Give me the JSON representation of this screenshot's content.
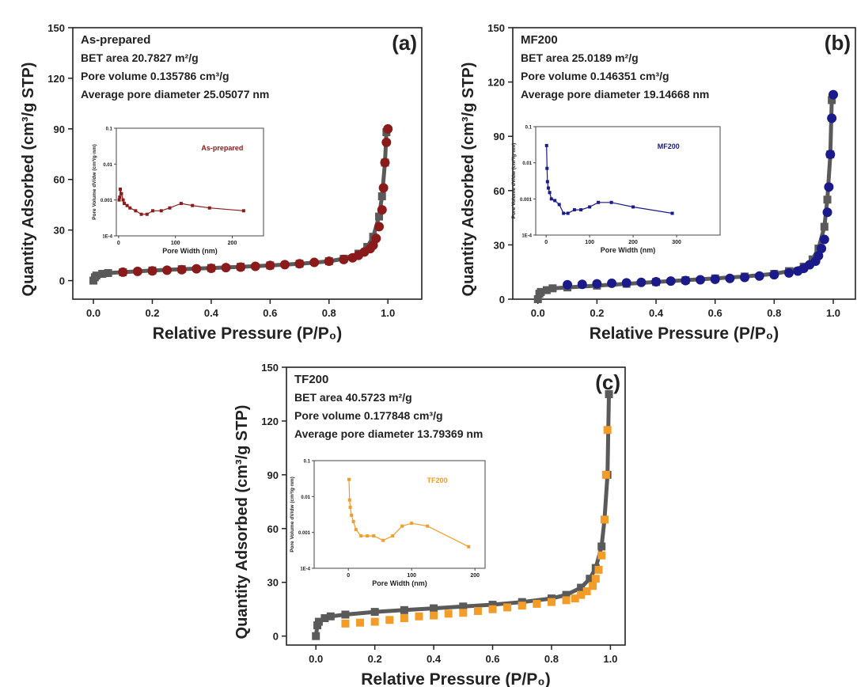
{
  "chart_data": [
    {
      "type": "scatter",
      "panel_label": "(a)",
      "annotations": [
        "As-prepared",
        "BET area 20.7827 m²/g",
        "Pore volume 0.135786 cm³/g",
        "Average pore diameter 25.05077 nm"
      ],
      "xlabel": "Relative Pressure (P/P₀)",
      "ylabel": "Quantity Adsorbed (cm³/g STP)",
      "xlim": [
        -0.07,
        1.115
      ],
      "ylim": [
        -11,
        150
      ],
      "xticks": [
        {
          "value": 0,
          "label": "0.0"
        },
        {
          "value": 0.2,
          "label": "0.2"
        },
        {
          "value": 0.4,
          "label": "0.4"
        },
        {
          "value": 0.6,
          "label": "0.6"
        },
        {
          "value": 0.8,
          "label": "0.8"
        },
        {
          "value": 1,
          "label": "1.0"
        }
      ],
      "yticks": [
        0,
        30,
        60,
        90,
        120,
        150
      ],
      "series": [
        {
          "color": "#5a5a5a",
          "marker": "square",
          "x": [
            0,
            0.005,
            0.01,
            0.03,
            0.05,
            0.1,
            0.2,
            0.3,
            0.4,
            0.5,
            0.6,
            0.7,
            0.8,
            0.85,
            0.9,
            0.93,
            0.95,
            0.97,
            0.98,
            0.99,
            0.995
          ],
          "values": [
            0,
            2,
            3,
            4,
            4.5,
            5,
            6,
            6.8,
            7.5,
            8.2,
            9,
            10,
            11.5,
            13,
            16,
            20,
            26,
            38,
            50,
            70,
            88
          ]
        },
        {
          "color": "#8b1a1a",
          "marker": "circle",
          "x": [
            0.1,
            0.15,
            0.2,
            0.25,
            0.3,
            0.35,
            0.4,
            0.45,
            0.5,
            0.55,
            0.6,
            0.65,
            0.7,
            0.75,
            0.8,
            0.85,
            0.88,
            0.9,
            0.92,
            0.94,
            0.95,
            0.96,
            0.97,
            0.98,
            0.985,
            0.99,
            0.995,
            1.0
          ],
          "values": [
            5,
            5.5,
            5.8,
            6.2,
            6.5,
            7,
            7.3,
            7.7,
            8,
            8.5,
            9,
            9.5,
            10,
            10.8,
            11.5,
            12.5,
            13.5,
            15,
            17,
            19,
            21,
            25,
            32,
            42,
            55,
            70,
            82,
            90
          ]
        }
      ]
    },
    {
      "type": "line",
      "log_y": true,
      "xlabel": "Pore Width (nm)",
      "ylabel": "Pore Volume dV/dw (cm³/g·nm)",
      "xlim": [
        -4,
        255
      ],
      "ylim": [
        0.0001,
        0.1
      ],
      "xticks": [
        0,
        100,
        200
      ],
      "yticks": [
        {
          "value": 0.0001,
          "label": "1E-4"
        },
        0.001,
        0.01,
        0.1
      ],
      "series": [
        {
          "name": "As-prepared",
          "color": "#8b1a1a",
          "x": [
            1,
            2,
            3,
            5,
            8,
            10,
            15,
            20,
            30,
            40,
            50,
            60,
            75,
            90,
            110,
            130,
            160,
            220
          ],
          "values": [
            0.001,
            0.0012,
            0.002,
            0.0015,
            0.001,
            0.0008,
            0.0007,
            0.0006,
            0.0005,
            0.0004,
            0.0004,
            0.0005,
            0.0005,
            0.0006,
            0.0008,
            0.0007,
            0.0006,
            0.0005
          ]
        }
      ]
    },
    {
      "type": "scatter",
      "panel_label": "(b)",
      "annotations": [
        "MF200",
        "BET area 25.0189 m²/g",
        "Pore volume 0.146351 cm³/g",
        "Average pore diameter 19.14668 nm"
      ],
      "xlabel": "Relative Pressure (P/P₀)",
      "ylabel": "Quantity Adsorbed (cm³/g STP)",
      "xlim": [
        -0.085,
        1.075
      ],
      "ylim": [
        0,
        150
      ],
      "xticks": [
        {
          "value": 0,
          "label": "0.0"
        },
        {
          "value": 0.2,
          "label": "0.2"
        },
        {
          "value": 0.4,
          "label": "0.4"
        },
        {
          "value": 0.6,
          "label": "0.6"
        },
        {
          "value": 0.8,
          "label": "0.8"
        },
        {
          "value": 1,
          "label": "1.0"
        }
      ],
      "yticks": [
        0,
        30,
        60,
        90,
        120,
        150
      ],
      "series": [
        {
          "color": "#5a5a5a",
          "marker": "square",
          "x": [
            0,
            0.005,
            0.01,
            0.03,
            0.05,
            0.1,
            0.2,
            0.3,
            0.4,
            0.5,
            0.6,
            0.7,
            0.8,
            0.85,
            0.9,
            0.93,
            0.95,
            0.97,
            0.98,
            0.99,
            0.995
          ],
          "values": [
            0,
            3,
            4,
            5,
            6,
            6.5,
            7.5,
            8.5,
            9.5,
            10.5,
            11.5,
            12.5,
            14,
            15.5,
            18,
            22,
            28,
            40,
            55,
            80,
            110
          ]
        },
        {
          "color": "#1a1a8b",
          "marker": "circle",
          "x": [
            0.1,
            0.15,
            0.2,
            0.25,
            0.3,
            0.35,
            0.4,
            0.45,
            0.5,
            0.55,
            0.6,
            0.65,
            0.7,
            0.75,
            0.8,
            0.85,
            0.88,
            0.9,
            0.92,
            0.94,
            0.95,
            0.96,
            0.97,
            0.98,
            0.985,
            0.99,
            0.995,
            1.0
          ],
          "values": [
            8,
            8.2,
            8.5,
            8.8,
            9,
            9.3,
            9.6,
            10,
            10.3,
            10.7,
            11,
            11.5,
            12,
            12.8,
            13.5,
            14.5,
            15.5,
            17,
            19,
            21,
            24,
            28,
            33,
            48,
            62,
            80,
            100,
            113
          ]
        }
      ]
    },
    {
      "type": "line",
      "log_y": true,
      "xlabel": "Pore Width (nm)",
      "ylabel": "Pore Volume dV/dw (cm³/g·nm)",
      "xlim": [
        -24,
        400
      ],
      "ylim": [
        0.0001,
        0.1
      ],
      "xticks": [
        0,
        100,
        200,
        300
      ],
      "yticks": [
        {
          "value": 0.0001,
          "label": "1E-4"
        },
        0.001,
        0.01,
        0.1
      ],
      "series": [
        {
          "name": "MF200",
          "color": "#1a1a8b",
          "x": [
            1,
            2,
            3,
            5,
            8,
            12,
            20,
            30,
            40,
            50,
            65,
            80,
            100,
            120,
            150,
            200,
            290
          ],
          "values": [
            0.03,
            0.007,
            0.003,
            0.002,
            0.0015,
            0.001,
            0.0009,
            0.0007,
            0.0004,
            0.0004,
            0.0005,
            0.0005,
            0.0006,
            0.0008,
            0.0008,
            0.0006,
            0.0004
          ]
        }
      ]
    },
    {
      "type": "scatter",
      "panel_label": "(c)",
      "annotations": [
        "TF200",
        "BET area 40.5723 m²/g",
        "Pore volume 0.177848 cm³/g",
        "Average pore diameter 13.79369 nm"
      ],
      "xlabel": "Relative Pressure (P/P₀)",
      "ylabel": "Quantity Adsorbed (cm³/g STP)",
      "xlim": [
        -0.1,
        1.05
      ],
      "ylim": [
        -5,
        150
      ],
      "xticks": [
        {
          "value": 0,
          "label": "0.0"
        },
        {
          "value": 0.2,
          "label": "0.2"
        },
        {
          "value": 0.4,
          "label": "0.4"
        },
        {
          "value": 0.6,
          "label": "0.6"
        },
        {
          "value": 0.8,
          "label": "0.8"
        },
        {
          "value": 1,
          "label": "1.0"
        }
      ],
      "yticks": [
        0,
        30,
        60,
        90,
        120,
        150
      ],
      "series": [
        {
          "color": "#5a5a5a",
          "marker": "square",
          "x": [
            0,
            0.005,
            0.01,
            0.03,
            0.05,
            0.1,
            0.2,
            0.3,
            0.4,
            0.5,
            0.6,
            0.7,
            0.8,
            0.85,
            0.9,
            0.93,
            0.95,
            0.97,
            0.98,
            0.99,
            0.995
          ],
          "values": [
            0,
            6,
            8,
            10,
            11,
            12,
            13.5,
            14.5,
            15.5,
            16.5,
            17.5,
            19,
            21,
            23,
            27,
            32,
            38,
            50,
            65,
            90,
            135
          ]
        },
        {
          "color": "#f39c28",
          "marker": "square",
          "x": [
            0.1,
            0.15,
            0.2,
            0.25,
            0.3,
            0.35,
            0.4,
            0.45,
            0.5,
            0.55,
            0.6,
            0.65,
            0.7,
            0.75,
            0.8,
            0.85,
            0.88,
            0.9,
            0.92,
            0.94,
            0.95,
            0.96,
            0.97,
            0.98,
            0.985,
            0.99
          ],
          "values": [
            7,
            7.5,
            8,
            9,
            10,
            11,
            11.5,
            12.5,
            13,
            14,
            15,
            16,
            17,
            18,
            19,
            20,
            21,
            23,
            25,
            28,
            32,
            37,
            45,
            65,
            90,
            115
          ]
        }
      ]
    },
    {
      "type": "line",
      "log_y": true,
      "xlabel": "Pore Width (nm)",
      "ylabel": "Pore Volume dV/dw (cm³/g·nm)",
      "xlim": [
        -54,
        216
      ],
      "ylim": [
        0.0001,
        0.1
      ],
      "xticks": [
        0,
        100,
        200
      ],
      "yticks": [
        {
          "value": 0.0001,
          "label": "1E-4"
        },
        0.001,
        0.01,
        0.1
      ],
      "series": [
        {
          "name": "TF200",
          "color": "#f39c28",
          "x": [
            1,
            2,
            3,
            5,
            8,
            12,
            20,
            30,
            40,
            55,
            70,
            85,
            100,
            125,
            190
          ],
          "values": [
            0.03,
            0.008,
            0.005,
            0.003,
            0.002,
            0.0012,
            0.0008,
            0.0008,
            0.0008,
            0.0006,
            0.0008,
            0.0015,
            0.0018,
            0.0015,
            0.0004
          ]
        }
      ]
    }
  ]
}
